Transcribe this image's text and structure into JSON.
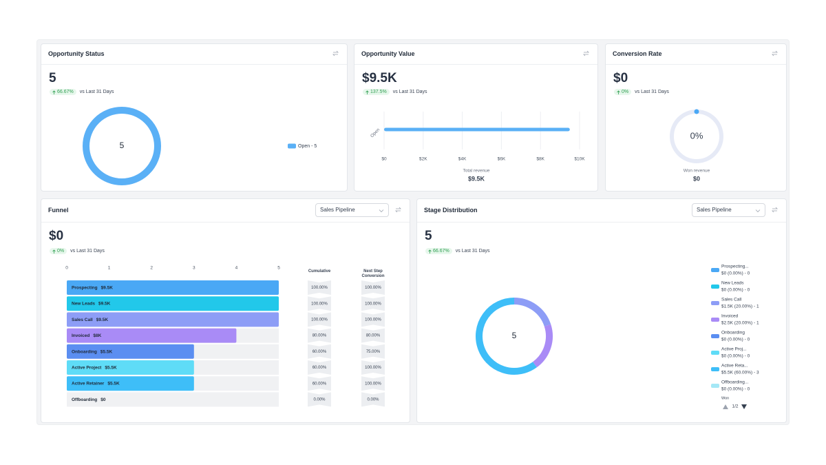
{
  "opportunity_status": {
    "title": "Opportunity Status",
    "value": "5",
    "change": "66.67%",
    "period": "vs Last 31 Days",
    "chart": {
      "type": "pie",
      "center_label": "5",
      "categories": [
        "Open"
      ],
      "values": [
        5
      ],
      "colors": [
        "#5ab0f6"
      ],
      "legend_labels": [
        "Open - 5"
      ]
    }
  },
  "opportunity_value": {
    "title": "Opportunity Value",
    "value": "$9.5K",
    "change": "137.5%",
    "period": "vs Last 31 Days",
    "chart": {
      "type": "bar",
      "orientation": "horizontal",
      "categories": [
        "Open"
      ],
      "values": [
        9500
      ],
      "color": "#5ab0f6",
      "xlim": [
        0,
        10000
      ],
      "xticks": [
        {
          "value": 0,
          "label": "$0"
        },
        {
          "value": 2000,
          "label": "$2K"
        },
        {
          "value": 4000,
          "label": "$4K"
        },
        {
          "value": 6000,
          "label": "$6K"
        },
        {
          "value": 8000,
          "label": "$8K"
        },
        {
          "value": 10000,
          "label": "$10K"
        }
      ],
      "grid": true,
      "footer_label": "Total revenue",
      "footer_value": "$9.5K"
    }
  },
  "conversion_rate": {
    "title": "Conversion Rate",
    "value": "$0",
    "change": "0%",
    "period": "vs Last 31 Days",
    "chart": {
      "type": "gauge",
      "value": 0,
      "value_label": "0%",
      "max": 100,
      "color": "#4aa8f5",
      "track_color": "#e6eaf6",
      "footer_label": "Won revenue",
      "footer_value": "$0"
    }
  },
  "funnel": {
    "title": "Funnel",
    "dropdown": "Sales Pipeline",
    "value": "$0",
    "change": "0%",
    "period": "vs Last 31 Days",
    "chart": {
      "type": "funnel",
      "xlim": [
        0,
        5
      ],
      "xticks": [
        0,
        1,
        2,
        3,
        4,
        5
      ],
      "categories": [
        "Prospecting",
        "New Leads",
        "Sales Call",
        "Invoiced",
        "Onboarding",
        "Active Project",
        "Active Retainer",
        "Offboarding"
      ],
      "amounts": [
        "$9.5K",
        "$9.5K",
        "$9.5K",
        "$8K",
        "$5.5K",
        "$5.5K",
        "$5.5K",
        "$0"
      ],
      "values": [
        5,
        5,
        5,
        4,
        3,
        3,
        3,
        0
      ],
      "colors": [
        "#4aa8f5",
        "#22c8ea",
        "#8d9df6",
        "#a98bf6",
        "#5b8ef1",
        "#5fdcf7",
        "#3ebef8",
        "#a5e8f6"
      ],
      "columns": [
        "Cumulative",
        "Next Step Conversion"
      ],
      "cumulative": [
        "100.00%",
        "100.00%",
        "100.00%",
        "80.00%",
        "60.00%",
        "60.00%",
        "60.00%",
        "0.00%"
      ],
      "next_step": [
        "100.00%",
        "100.00%",
        "100.00%",
        "80.00%",
        "75.00%",
        "100.00%",
        "100.00%",
        "0.00%"
      ]
    }
  },
  "stage_distribution": {
    "title": "Stage Distribution",
    "dropdown": "Sales Pipeline",
    "value": "5",
    "change": "66.67%",
    "period": "vs Last 31 Days",
    "chart": {
      "type": "pie",
      "center_label": "5",
      "categories": [
        "Prospecting...",
        "New Leads",
        "Sales Call",
        "Invoiced",
        "Onboarding",
        "Active Proj...",
        "Active Reta...",
        "Offboarding..."
      ],
      "details": [
        "$0 (0.00%) - 0",
        "$0 (0.00%) - 0",
        "$1.5K (20.00%) - 1",
        "$2.5K (20.00%) - 1",
        "$0 (0.00%) - 0",
        "$0 (0.00%) - 0",
        "$5.5K (60.00%) - 3",
        "$0 (0.00%) - 0"
      ],
      "values": [
        0,
        0,
        1,
        1,
        0,
        0,
        3,
        0
      ],
      "colors": [
        "#4aa8f5",
        "#22c8ea",
        "#8d9df6",
        "#a98bf6",
        "#5b8ef1",
        "#5fdcf7",
        "#3ebef8",
        "#a5e8f6"
      ],
      "legend_footer": "Won",
      "page": "1/2"
    }
  }
}
